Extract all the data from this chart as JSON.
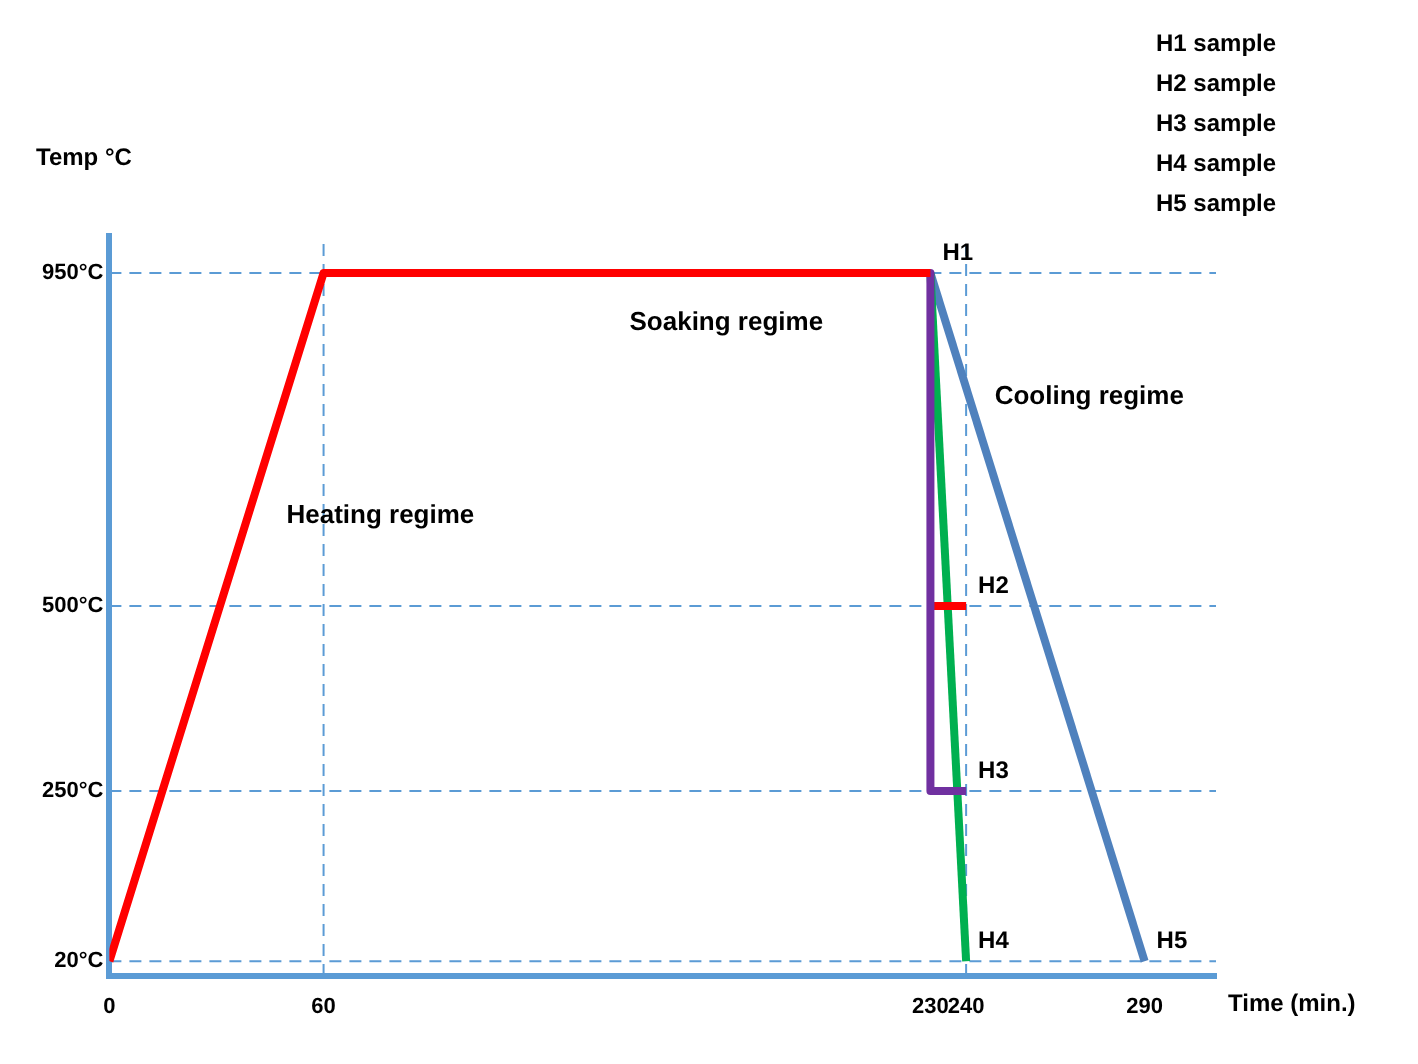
{
  "chart_data": {
    "type": "line",
    "xlabel": "Time (min.)",
    "ylabel": "Temp °C",
    "xlim": [
      0,
      310
    ],
    "xticks": [
      0,
      60,
      230,
      240,
      290
    ],
    "ylim": [
      0,
      1000
    ],
    "yticks": [
      {
        "value": 20,
        "label": "20°C"
      },
      {
        "value": 250,
        "label": "250°C"
      },
      {
        "value": 500,
        "label": "500°C"
      },
      {
        "value": 950,
        "label": "950°C"
      }
    ],
    "series": [
      {
        "color": "#ff0000",
        "x": [
          0,
          60,
          230
        ],
        "values": [
          20,
          950,
          950
        ]
      },
      {
        "color": "#7030a0",
        "x": [
          230,
          230,
          240
        ],
        "values": [
          950,
          250,
          250
        ]
      },
      {
        "color": "#ff0000",
        "x": [
          230,
          240
        ],
        "values": [
          500,
          500
        ]
      },
      {
        "color": "#00b050",
        "x": [
          230,
          240
        ],
        "values": [
          950,
          20
        ]
      },
      {
        "color": "#4f81bd",
        "x": [
          230,
          290
        ],
        "values": [
          950,
          20
        ]
      }
    ],
    "ref_lines": [
      {
        "axis": "y",
        "value": 950,
        "color": "#5b9bd5",
        "line_style": "dashed"
      },
      {
        "axis": "y",
        "value": 500,
        "color": "#5b9bd5",
        "line_style": "dashed"
      },
      {
        "axis": "y",
        "value": 250,
        "color": "#5b9bd5",
        "line_style": "dashed"
      },
      {
        "axis": "y",
        "value": 20,
        "color": "#5b9bd5",
        "line_style": "dashed"
      },
      {
        "axis": "x",
        "value": 60,
        "color": "#5b9bd5",
        "line_style": "dashed"
      },
      {
        "axis": "x",
        "value": 240,
        "color": "#5b9bd5",
        "line_style": "dashed"
      }
    ],
    "annotations": [
      "H1 sample",
      "H2 sample",
      "H3 sample",
      "H4 sample",
      "H5 sample",
      {
        "text": "H1",
        "x": 230,
        "y": 950
      },
      {
        "text": "H2",
        "x": 240,
        "y": 500
      },
      {
        "text": "H3",
        "x": 240,
        "y": 250
      },
      {
        "text": "H4",
        "x": 240,
        "y": 20
      },
      {
        "text": "H5",
        "x": 290,
        "y": 20
      },
      "Soaking regime",
      "Heating regime",
      "Cooling regime"
    ],
    "grid": false,
    "legend": false,
    "marker": "none",
    "line_style": "solid"
  }
}
